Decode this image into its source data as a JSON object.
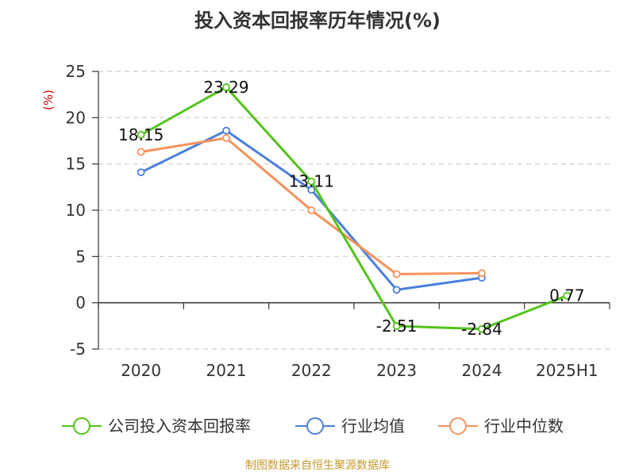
{
  "colors": {
    "company": "#52c41a",
    "industry_avg": "#4a7fdc",
    "industry_median": "#f5925c",
    "unit": "#e00000",
    "source": "#c49a2c"
  },
  "chart_data": {
    "type": "line",
    "title": "投入资本回报率历年情况(%)",
    "ylabel": "(%)",
    "ylim": [
      -5,
      25
    ],
    "yticks": [
      25,
      20,
      15,
      10,
      5,
      0,
      -5
    ],
    "categories": [
      "2020",
      "2021",
      "2022",
      "2023",
      "2024",
      "2025H1"
    ],
    "grid": true,
    "legend_position": "bottom",
    "series": [
      {
        "name": "公司投入资本回报率",
        "values": [
          18.15,
          23.29,
          13.11,
          -2.51,
          -2.84,
          0.77
        ],
        "labels": [
          "18.15",
          "23.29",
          "13.11",
          "-2.51",
          "-2.84",
          "0.77"
        ]
      },
      {
        "name": "行业均值",
        "values": [
          14.1,
          18.6,
          12.2,
          1.4,
          2.7,
          null
        ]
      },
      {
        "name": "行业中位数",
        "values": [
          16.3,
          17.8,
          10.0,
          3.1,
          3.2,
          null
        ]
      }
    ]
  },
  "footer": {
    "source": "制图数据来自恒生聚源数据库"
  }
}
